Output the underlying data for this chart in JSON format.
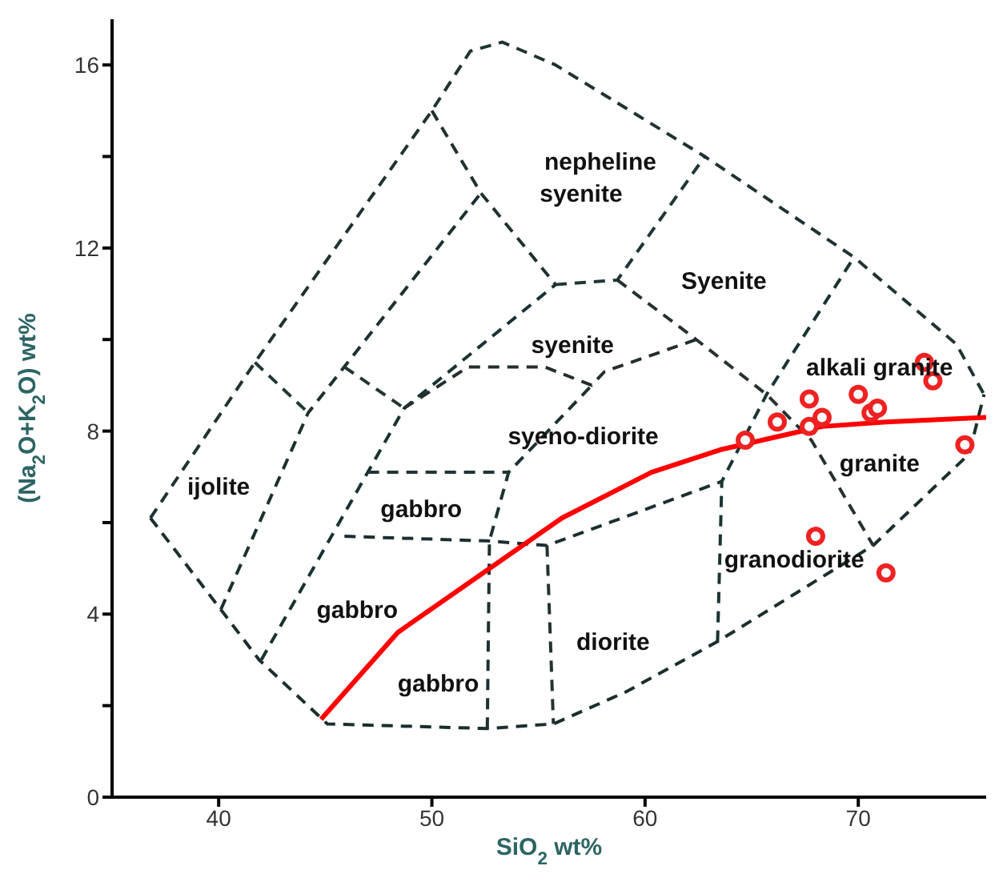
{
  "chart_data": {
    "type": "scatter",
    "xlabel": "SiO$_{2}$ wt%",
    "ylabel": "(Na$_{2}$O+K$_{2}$O) wt%",
    "xlim": [
      35,
      76
    ],
    "xticks": [
      40,
      50,
      60,
      70
    ],
    "ylim": [
      0,
      17
    ],
    "yticks": [
      0,
      {
        "value": 2,
        "label": null
      },
      4,
      {
        "value": 6,
        "label": null
      },
      8,
      {
        "value": 10,
        "label": null
      },
      12,
      {
        "value": 14,
        "label": null
      },
      16
    ],
    "grid": false,
    "series": [
      {
        "type": "line",
        "color": "#1f3333",
        "line_style": "dashed",
        "marker": "none",
        "x": [
          36.8,
          41.7,
          50.0,
          51.8,
          53.3,
          55.8,
          62.8,
          69.8,
          74.6,
          75.9
        ],
        "values": [
          6.1,
          9.5,
          15.0,
          16.3,
          16.5,
          16.0,
          14.0,
          11.8,
          9.9,
          8.8
        ]
      },
      {
        "type": "line",
        "color": "#1a2e2e",
        "line_style": "dashed",
        "marker": "none",
        "x": [
          36.8,
          40.1,
          41.9,
          45.1,
          52.6,
          55.7,
          59.1,
          63.4,
          70.7,
          75.2,
          75.9
        ],
        "values": [
          6.1,
          4.1,
          3.0,
          1.6,
          1.5,
          1.6,
          2.3,
          3.4,
          5.5,
          7.5,
          8.8
        ]
      },
      {
        "type": "line",
        "color": "#223838",
        "line_style": "dashed",
        "marker": "none",
        "x": [
          41.7,
          44.2
        ],
        "values": [
          9.5,
          8.4
        ]
      },
      {
        "type": "line",
        "color": "#1c3030",
        "line_style": "dashed",
        "marker": "none",
        "x": [
          40.1,
          44.2,
          52.3
        ],
        "values": [
          4.1,
          8.4,
          13.2
        ]
      },
      {
        "type": "line",
        "color": "#253535",
        "line_style": "dashed",
        "marker": "none",
        "x": [
          45.9,
          48.7
        ],
        "values": [
          9.4,
          8.5
        ]
      },
      {
        "type": "line",
        "color": "#183232",
        "line_style": "dashed",
        "marker": "none",
        "x": [
          42.0,
          48.7,
          55.8
        ],
        "values": [
          3.0,
          8.5,
          11.2
        ]
      },
      {
        "type": "line",
        "color": "#203030",
        "line_style": "dashed",
        "marker": "none",
        "x": [
          50.0,
          52.3,
          55.8
        ],
        "values": [
          15.0,
          13.2,
          11.2
        ]
      },
      {
        "type": "line",
        "color": "#1e3636",
        "line_style": "dashed",
        "marker": "none",
        "x": [
          55.8,
          58.7,
          62.8
        ],
        "values": [
          11.2,
          11.3,
          14.0
        ]
      },
      {
        "type": "line",
        "color": "#263030",
        "line_style": "dashed",
        "marker": "none",
        "x": [
          58.7,
          62.4,
          65.7,
          67.8,
          70.7
        ],
        "values": [
          11.3,
          10.0,
          8.8,
          7.8,
          5.5
        ]
      },
      {
        "type": "line",
        "color": "#1a3434",
        "line_style": "dashed",
        "marker": "none",
        "x": [
          63.4,
          63.6,
          65.7,
          69.8
        ],
        "values": [
          3.4,
          6.9,
          8.8,
          11.8
        ]
      },
      {
        "type": "line",
        "color": "#242e2e",
        "line_style": "dashed",
        "marker": "none",
        "x": [
          48.7,
          51.7,
          55.3,
          57.5,
          58.1,
          62.4
        ],
        "values": [
          8.5,
          9.4,
          9.4,
          9.0,
          9.3,
          10.0
        ]
      },
      {
        "type": "line",
        "color": "#1d3131",
        "line_style": "dashed",
        "marker": "none",
        "x": [
          52.6,
          52.7,
          53.6,
          57.5
        ],
        "values": [
          1.5,
          5.6,
          7.1,
          9.0
        ]
      },
      {
        "type": "line",
        "color": "#213535",
        "line_style": "dashed",
        "marker": "none",
        "x": [
          47.0,
          53.6
        ],
        "values": [
          7.1,
          7.1
        ]
      },
      {
        "type": "line",
        "color": "#1b2f33",
        "line_style": "dashed",
        "marker": "none",
        "x": [
          45.9,
          52.6,
          55.4,
          63.6
        ],
        "values": [
          5.7,
          5.6,
          5.5,
          6.9
        ]
      },
      {
        "type": "line",
        "color": "#23332f",
        "line_style": "dashed",
        "marker": "none",
        "x": [
          55.4,
          55.7
        ],
        "values": [
          5.5,
          1.6
        ]
      },
      {
        "type": "line",
        "color": "#ff0000",
        "line_style": "solid",
        "marker": "none",
        "x": [
          44.8,
          48.4,
          56.1,
          60.3,
          63.6,
          68.3,
          71.3,
          76.0
        ],
        "values": [
          1.7,
          3.6,
          6.1,
          7.1,
          7.6,
          8.1,
          8.2,
          8.3
        ]
      },
      {
        "color": "#ee2222",
        "marker": "circle",
        "x": [
          64.7,
          66.2,
          67.7,
          67.7,
          68.3,
          70.0,
          70.6,
          70.9,
          73.1,
          73.5,
          75.0,
          68.0,
          71.3
        ],
        "values": [
          7.8,
          8.2,
          8.7,
          8.1,
          8.3,
          8.8,
          8.4,
          8.5,
          9.5,
          9.1,
          7.7,
          5.7,
          4.9
        ]
      }
    ],
    "annotations": [
      "nepheline",
      "syenite",
      "Syenite",
      "syenite",
      "alkali granite",
      "syeno-diorite",
      "ijolite",
      "gabbro",
      "granite",
      "granodiorite",
      "gabbro",
      "diorite",
      "gabbro"
    ]
  }
}
